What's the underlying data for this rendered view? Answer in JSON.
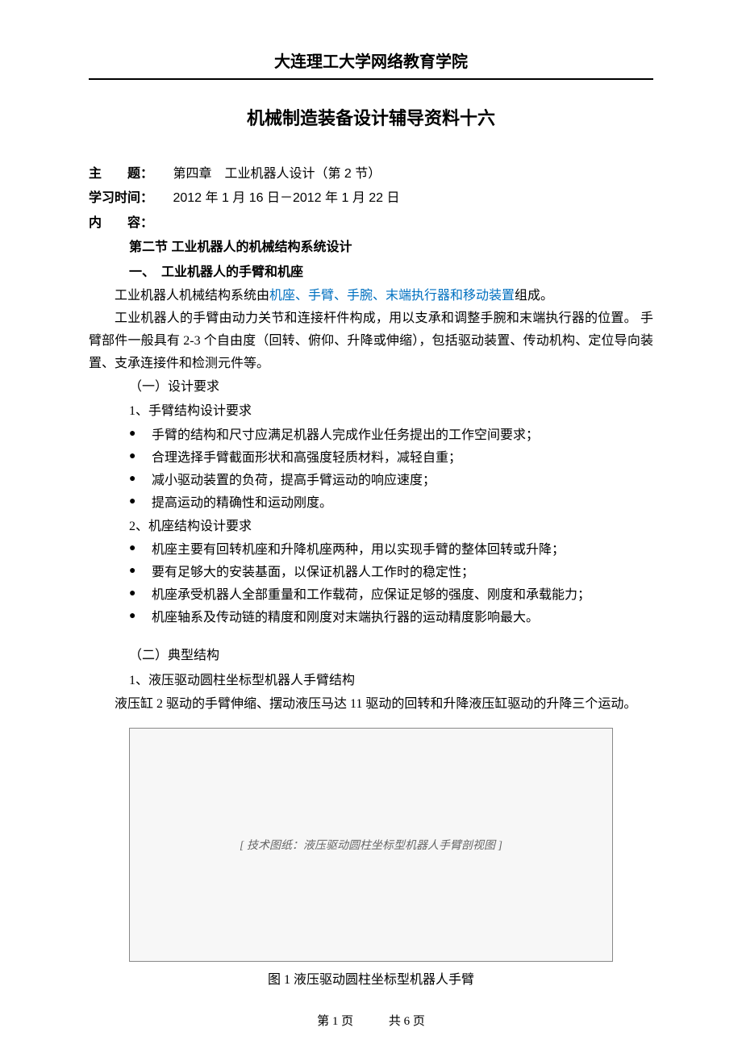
{
  "institution": "大连理工大学网络教育学院",
  "doc_title": "机械制造装备设计辅导资料十六",
  "meta": {
    "topic_label": "主　　题：",
    "topic_value": "第四章　工业机器人设计（第 2 节）",
    "time_label": "学习时间：",
    "time_value": "2012 年 1 月 16 日－2012 年 1 月 22 日",
    "content_label": "内　　容："
  },
  "section": {
    "heading": "第二节 工业机器人的机械结构系统设计",
    "sub1": "一、　工业机器人的手臂和机座",
    "intro_pre": "工业机器人机械结构系统由",
    "intro_highlight": "机座、手臂、手腕、末端执行器和移动装置",
    "intro_post": "组成。",
    "para2": "工业机器人的手臂由动力关节和连接杆件构成，用以支承和调整手腕和末端执行器的位置。 手臂部件一般具有 2-3 个自由度（回转、俯仰、升降或伸缩），包括驱动装置、传动机构、定位导向装置、支承连接件和检测元件等。"
  },
  "design": {
    "heading1": "（一）设计要求",
    "arm_req_heading": "1、手臂结构设计要求",
    "arm_reqs": [
      "手臂的结构和尺寸应满足机器人完成作业任务提出的工作空间要求；",
      "合理选择手臂截面形状和高强度轻质材料，减轻自重；",
      "减小驱动装置的负荷，提高手臂运动的响应速度；",
      "提高运动的精确性和运动刚度。"
    ],
    "base_req_heading": "2、机座结构设计要求",
    "base_reqs": [
      "机座主要有回转机座和升降机座两种，用以实现手臂的整体回转或升降；",
      "要有足够大的安装基面，以保证机器人工作时的稳定性；",
      "机座承受机器人全部重量和工作载荷，应保证足够的强度、刚度和承载能力；",
      "机座轴系及传动链的精度和刚度对末端执行器的运动精度影响最大。"
    ]
  },
  "typical": {
    "heading": "（二）典型结构",
    "item1_heading": "1、液压驱动圆柱坐标型机器人手臂结构",
    "item1_text": "液压缸 2 驱动的手臂伸缩、摆动液压马达 11 驱动的回转和升降液压缸驱动的升降三个运动。"
  },
  "figure": {
    "placeholder": "[ 技术图纸：液压驱动圆柱坐标型机器人手臂剖视图 ]",
    "caption": "图 1 液压驱动圆柱坐标型机器人手臂"
  },
  "footer": {
    "page_current": "第 1 页",
    "page_total": "共 6 页"
  },
  "colors": {
    "highlight": "#0070c0",
    "text": "#000000",
    "bg": "#ffffff"
  }
}
